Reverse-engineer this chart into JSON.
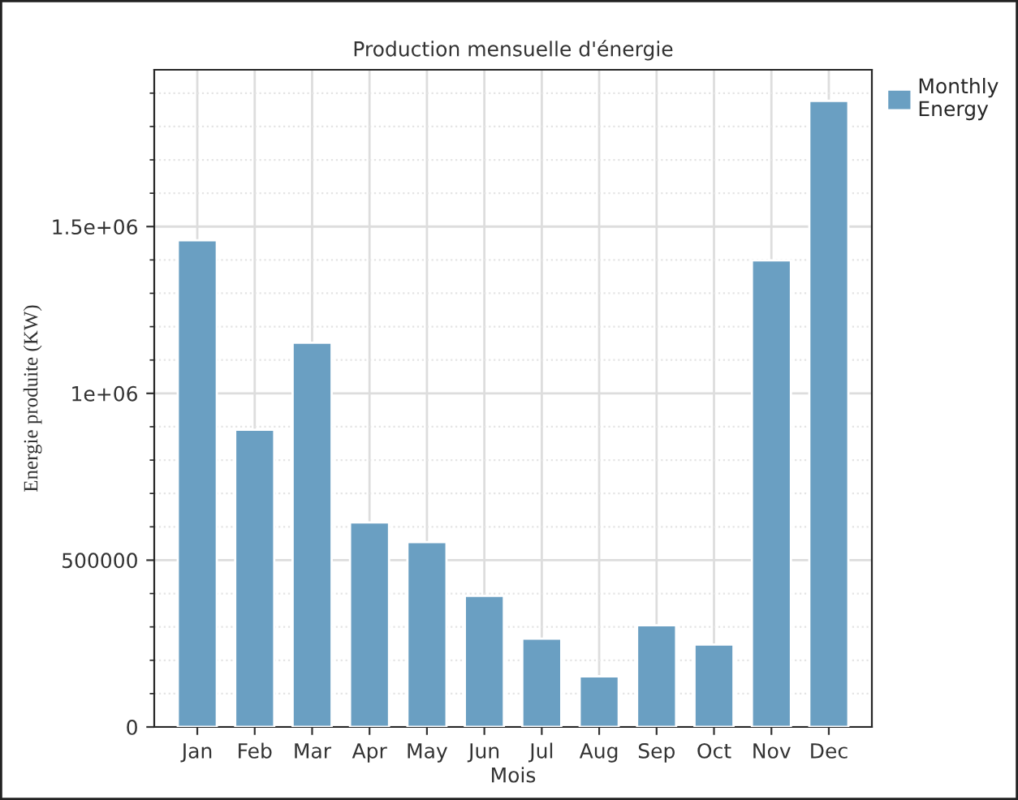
{
  "chart_data": {
    "type": "bar",
    "title": "Production mensuelle d'énergie",
    "xlabel": "Mois",
    "ylabel": "Energie produite (KW)",
    "categories": [
      "Jan",
      "Feb",
      "Mar",
      "Apr",
      "May",
      "Jun",
      "Jul",
      "Aug",
      "Sep",
      "Oct",
      "Nov",
      "Dec"
    ],
    "series": [
      {
        "name": "Monthly\nEnergy",
        "color": "#6a9fc2",
        "values": [
          1459000,
          891000,
          1152000,
          613000,
          554000,
          393000,
          265000,
          152000,
          305000,
          247000,
          1399000,
          1877000
        ]
      }
    ],
    "ylim": [
      0,
      1970000
    ],
    "yticks": [
      0,
      500000,
      {
        "value": 1000000,
        "label": "1e+06"
      },
      {
        "value": 1500000,
        "label": "1.5e+06"
      }
    ],
    "grid": true,
    "legend": "top right"
  }
}
